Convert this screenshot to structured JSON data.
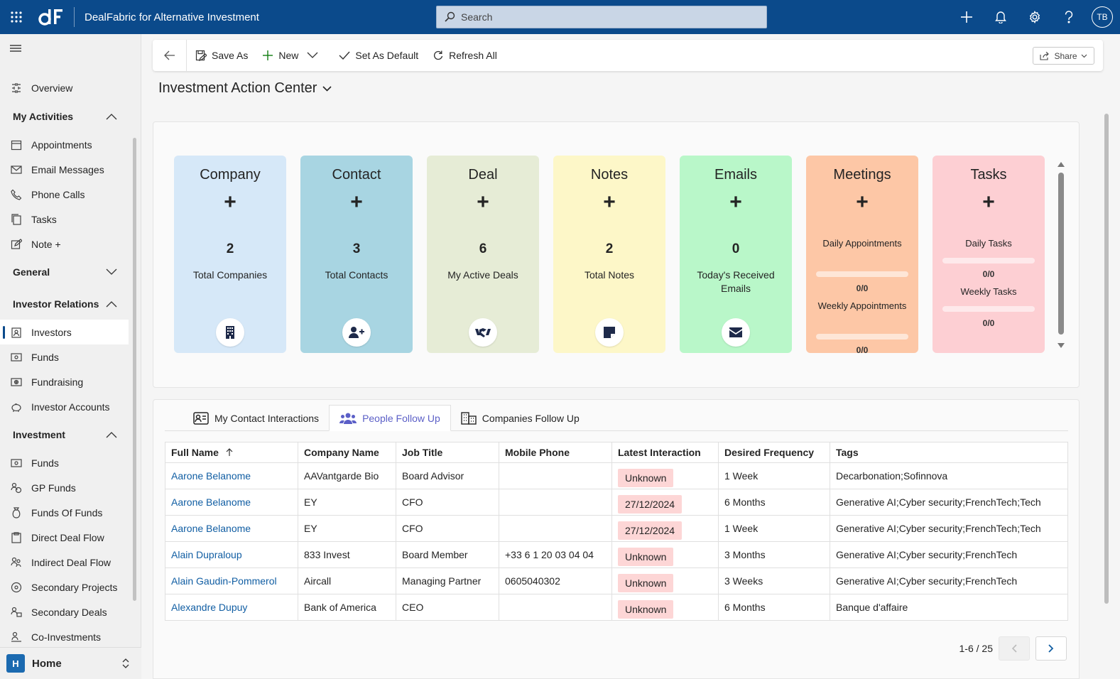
{
  "app": {
    "title": "DealFabric for Alternative Investment",
    "avatar": "TB"
  },
  "search": {
    "placeholder": "Search"
  },
  "sidebar": {
    "overview": "Overview",
    "groups": [
      {
        "label": "My Activities",
        "items": [
          "Appointments",
          "Email Messages",
          "Phone Calls",
          "Tasks",
          "Note +"
        ]
      },
      {
        "label": "General",
        "items": []
      },
      {
        "label": "Investor Relations",
        "items": [
          "Investors",
          "Funds",
          "Fundraising",
          "Investor Accounts"
        ]
      },
      {
        "label": "Investment",
        "items": [
          "Funds",
          "GP Funds",
          "Funds Of Funds",
          "Direct Deal Flow",
          "Indirect Deal Flow",
          "Secondary Projects",
          "Secondary Deals",
          "Co-Investments"
        ]
      }
    ],
    "home": {
      "badge": "H",
      "label": "Home"
    }
  },
  "toolbar": {
    "save_as": "Save As",
    "new": "New",
    "set_default": "Set As Default",
    "refresh": "Refresh All",
    "share": "Share"
  },
  "page": {
    "title": "Investment Action Center"
  },
  "tiles": [
    {
      "title": "Company",
      "plus": "+",
      "count": "2",
      "label": "Total Companies",
      "color": "#d6e8f8",
      "icon": "building-icon"
    },
    {
      "title": "Contact",
      "plus": "+",
      "count": "3",
      "label": "Total Contacts",
      "color": "#a8d5e2",
      "icon": "add-person-icon"
    },
    {
      "title": "Deal",
      "plus": "+",
      "count": "6",
      "label": "My Active Deals",
      "color": "#e6ecd6",
      "icon": "handshake-icon"
    },
    {
      "title": "Notes",
      "plus": "+",
      "count": "2",
      "label": "Total Notes",
      "color": "#fdf7c8",
      "icon": "note-icon"
    },
    {
      "title": "Emails",
      "plus": "+",
      "count": "0",
      "label": "Today's Received Emails",
      "color": "#b9f7c9",
      "icon": "envelope-icon"
    },
    {
      "title": "Meetings",
      "plus": "+",
      "daily_label": "Daily Appointments",
      "daily_value": "0/0",
      "weekly_label": "Weekly Appointments",
      "weekly_value": "0/0",
      "color": "#fdc7a6"
    },
    {
      "title": "Tasks",
      "plus": "+",
      "daily_label": "Daily Tasks",
      "daily_value": "0/0",
      "weekly_label": "Weekly Tasks",
      "weekly_value": "0/0",
      "color": "#fdcfd3"
    }
  ],
  "tabs": [
    "My Contact Interactions",
    "People Follow Up",
    "Companies Follow Up"
  ],
  "table": {
    "columns": [
      "Full Name",
      "Company Name",
      "Job Title",
      "Mobile Phone",
      "Latest Interaction",
      "Desired Frequency",
      "Tags"
    ],
    "rows": [
      [
        "Aarone Belanome",
        "AAVantgarde Bio",
        "Board Advisor",
        "",
        "Unknown",
        "1 Week",
        "Decarbonation;Sofinnova"
      ],
      [
        "Aarone Belanome",
        "EY",
        "CFO",
        "",
        "27/12/2024",
        "6 Months",
        "Generative AI;Cyber security;FrenchTech;Tech"
      ],
      [
        "Aarone Belanome",
        "EY",
        "CFO",
        "",
        "27/12/2024",
        "1 Week",
        "Generative AI;Cyber security;FrenchTech;Tech"
      ],
      [
        "Alain Dupraloup",
        "833 Invest",
        "Board Member",
        "+33 6 1 20 03 04 04",
        "Unknown",
        "3 Months",
        "Generative AI;Cyber security;FrenchTech"
      ],
      [
        "Alain Gaudin-Pommerol",
        "Aircall",
        "Managing Partner",
        "0605040302",
        "Unknown",
        "3 Weeks",
        "Generative AI;Cyber security;FrenchTech"
      ],
      [
        "Alexandre Dupuy",
        "Bank of America",
        "CEO",
        "",
        "Unknown",
        "6 Months",
        "Banque d'affaire"
      ]
    ]
  },
  "pager": {
    "range": "1-6 / 25"
  }
}
